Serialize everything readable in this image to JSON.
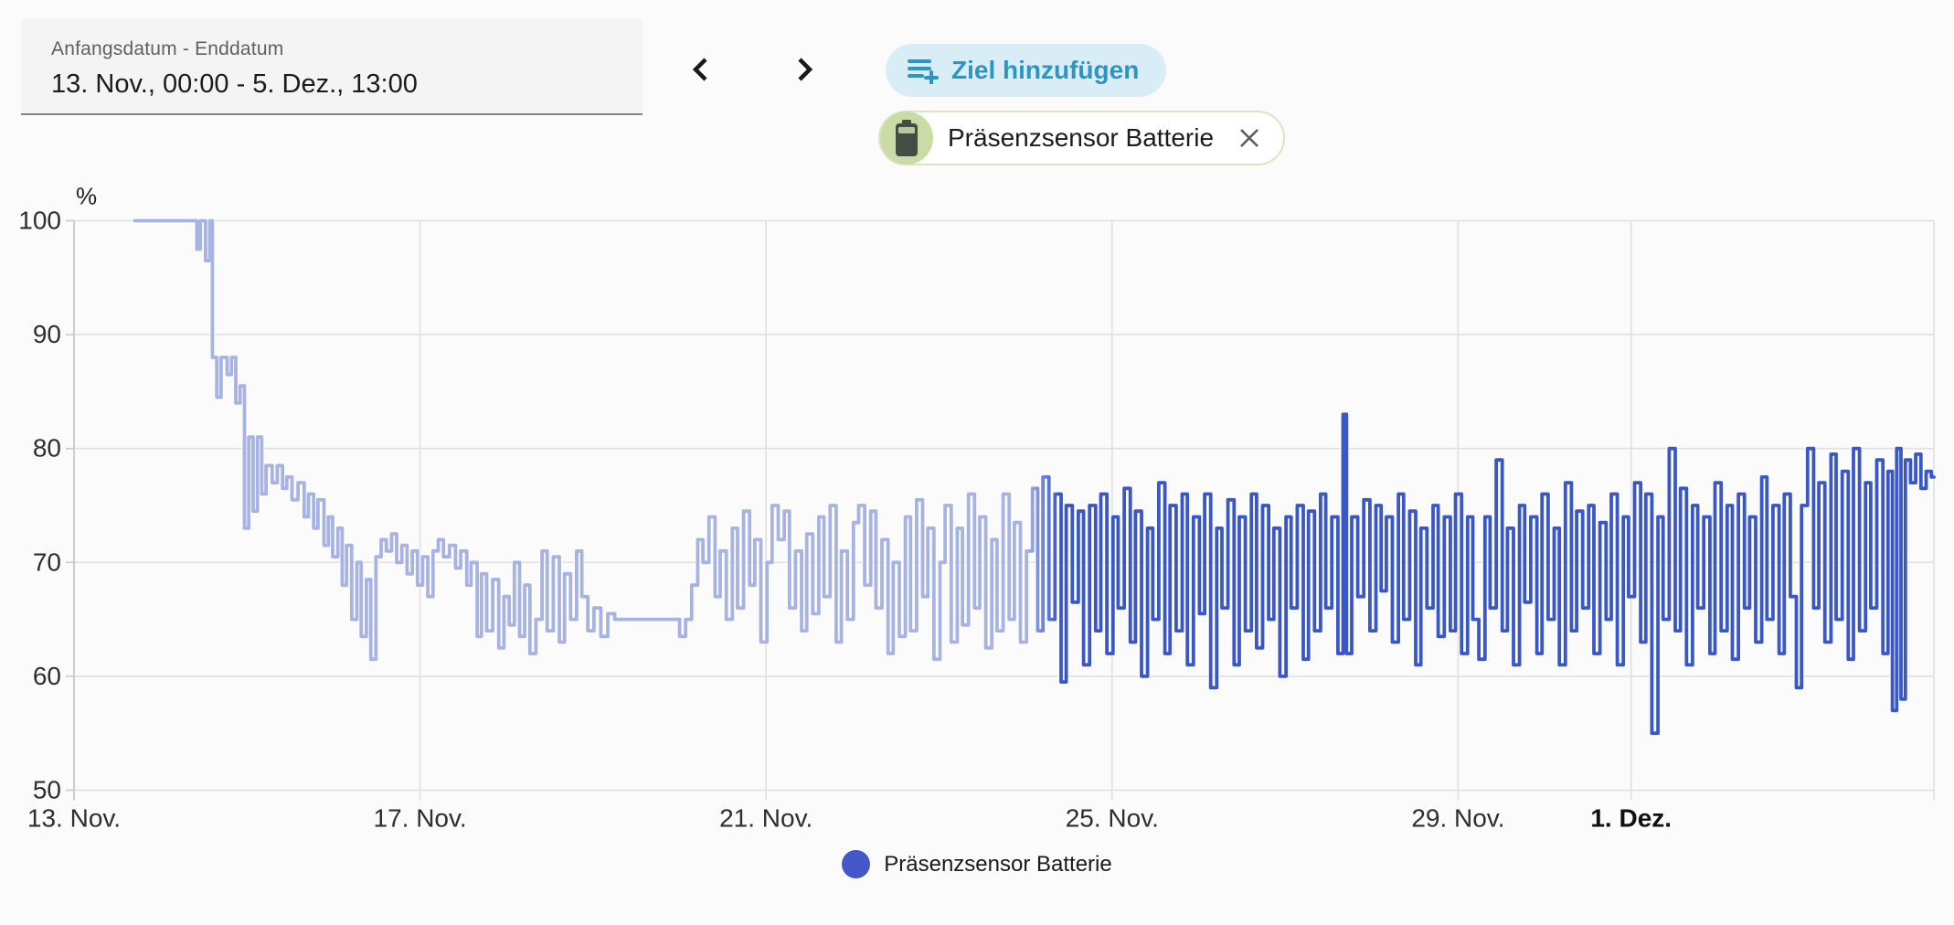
{
  "header": {
    "date_range": {
      "label": "Anfangsdatum - Enddatum",
      "value": "13. Nov., 00:00 - 5. Dez., 13:00"
    },
    "prev_icon": "chevron-left",
    "next_icon": "chevron-right",
    "add_goal_button": {
      "label": "Ziel hinzufügen",
      "icon": "playlist-plus"
    },
    "entity_chip": {
      "label": "Präsenzsensor Batterie",
      "icon": "battery",
      "close_icon": "close",
      "avatar_bg": "#cbdba6"
    }
  },
  "colors": {
    "accent_button_bg": "#d9edf7",
    "accent_button_text": "#2d95c2",
    "line_old": "#a7b3e3",
    "line_recent": "#3a57c8",
    "legend_dot": "#4457c9",
    "grid": "#e0e0e0",
    "axis": "#c9c9c9",
    "tick_text": "#2e2e2e"
  },
  "chart_data": {
    "type": "line",
    "step": true,
    "unit": "%",
    "ylabel": "%",
    "ylim": [
      50,
      100
    ],
    "yticks": [
      100,
      90,
      80,
      70,
      60,
      50
    ],
    "grid": true,
    "x_axis_start": "13. Nov. 00:00",
    "x_axis_days_span": 21.5,
    "xticks": [
      {
        "day": 0,
        "label": "13. Nov."
      },
      {
        "day": 4,
        "label": "17. Nov."
      },
      {
        "day": 8,
        "label": "21. Nov."
      },
      {
        "day": 12,
        "label": "25. Nov."
      },
      {
        "day": 16,
        "label": "29. Nov."
      },
      {
        "day": 18,
        "label": "1. Dez.",
        "bold": true
      }
    ],
    "legend": {
      "position": "bottom",
      "entries": [
        {
          "label": "Präsenzsensor Batterie",
          "color": "#4457c9"
        }
      ]
    },
    "series": [
      {
        "name": "Präsenzsensor Batterie",
        "color_old": "#a7b3e3",
        "color_recent": "#3a57c8",
        "color_transition_day": 11.2,
        "points": [
          [
            0.7,
            100
          ],
          [
            1.42,
            97.5
          ],
          [
            1.46,
            100
          ],
          [
            1.52,
            96.5
          ],
          [
            1.57,
            100
          ],
          [
            1.6,
            88
          ],
          [
            1.65,
            84.5
          ],
          [
            1.7,
            88
          ],
          [
            1.77,
            86.5
          ],
          [
            1.82,
            88
          ],
          [
            1.87,
            84
          ],
          [
            1.92,
            85.5
          ],
          [
            1.97,
            73
          ],
          [
            2.02,
            81
          ],
          [
            2.07,
            74.5
          ],
          [
            2.12,
            81
          ],
          [
            2.17,
            76
          ],
          [
            2.22,
            78.5
          ],
          [
            2.29,
            77
          ],
          [
            2.35,
            78.5
          ],
          [
            2.41,
            76.5
          ],
          [
            2.46,
            77.5
          ],
          [
            2.52,
            75.5
          ],
          [
            2.59,
            77
          ],
          [
            2.66,
            74
          ],
          [
            2.71,
            76
          ],
          [
            2.77,
            73
          ],
          [
            2.82,
            75.5
          ],
          [
            2.89,
            71.5
          ],
          [
            2.94,
            74
          ],
          [
            2.99,
            70.5
          ],
          [
            3.05,
            73
          ],
          [
            3.1,
            68
          ],
          [
            3.15,
            71.5
          ],
          [
            3.21,
            65
          ],
          [
            3.27,
            70
          ],
          [
            3.32,
            63.5
          ],
          [
            3.38,
            68.5
          ],
          [
            3.43,
            61.5
          ],
          [
            3.49,
            70.5
          ],
          [
            3.55,
            72
          ],
          [
            3.61,
            71
          ],
          [
            3.67,
            72.5
          ],
          [
            3.73,
            70
          ],
          [
            3.79,
            71.5
          ],
          [
            3.85,
            69
          ],
          [
            3.91,
            71
          ],
          [
            3.97,
            68
          ],
          [
            4.03,
            70.5
          ],
          [
            4.09,
            67
          ],
          [
            4.15,
            71
          ],
          [
            4.21,
            72
          ],
          [
            4.27,
            70.5
          ],
          [
            4.34,
            71.5
          ],
          [
            4.41,
            69.5
          ],
          [
            4.47,
            71
          ],
          [
            4.54,
            68
          ],
          [
            4.59,
            70
          ],
          [
            4.66,
            63.5
          ],
          [
            4.71,
            69
          ],
          [
            4.77,
            64
          ],
          [
            4.84,
            68.5
          ],
          [
            4.91,
            62.5
          ],
          [
            4.97,
            67
          ],
          [
            5.03,
            64.5
          ],
          [
            5.09,
            70
          ],
          [
            5.15,
            63.5
          ],
          [
            5.21,
            68
          ],
          [
            5.27,
            62
          ],
          [
            5.34,
            65
          ],
          [
            5.41,
            71
          ],
          [
            5.47,
            64
          ],
          [
            5.54,
            70.5
          ],
          [
            5.61,
            63
          ],
          [
            5.67,
            69
          ],
          [
            5.74,
            65
          ],
          [
            5.81,
            71
          ],
          [
            5.87,
            67
          ],
          [
            5.94,
            64
          ],
          [
            6.01,
            66
          ],
          [
            6.09,
            63.5
          ],
          [
            6.17,
            65.5
          ],
          [
            6.25,
            65
          ],
          [
            7.0,
            63.5
          ],
          [
            7.07,
            65
          ],
          [
            7.14,
            68
          ],
          [
            7.21,
            72
          ],
          [
            7.27,
            70
          ],
          [
            7.34,
            74
          ],
          [
            7.41,
            67
          ],
          [
            7.47,
            71
          ],
          [
            7.54,
            65
          ],
          [
            7.61,
            73
          ],
          [
            7.67,
            66
          ],
          [
            7.74,
            74.5
          ],
          [
            7.81,
            68
          ],
          [
            7.87,
            72
          ],
          [
            7.94,
            63
          ],
          [
            8.01,
            70
          ],
          [
            8.07,
            75
          ],
          [
            8.14,
            72
          ],
          [
            8.21,
            74.5
          ],
          [
            8.27,
            66
          ],
          [
            8.34,
            71
          ],
          [
            8.41,
            64
          ],
          [
            8.47,
            72.5
          ],
          [
            8.54,
            65.5
          ],
          [
            8.61,
            74
          ],
          [
            8.67,
            67
          ],
          [
            8.74,
            75
          ],
          [
            8.81,
            63
          ],
          [
            8.87,
            71
          ],
          [
            8.94,
            65
          ],
          [
            9.01,
            73.5
          ],
          [
            9.07,
            75
          ],
          [
            9.14,
            68
          ],
          [
            9.21,
            74.5
          ],
          [
            9.27,
            66
          ],
          [
            9.34,
            72
          ],
          [
            9.41,
            62
          ],
          [
            9.47,
            70
          ],
          [
            9.54,
            63.5
          ],
          [
            9.61,
            74
          ],
          [
            9.67,
            64
          ],
          [
            9.74,
            75.5
          ],
          [
            9.81,
            67
          ],
          [
            9.87,
            73
          ],
          [
            9.94,
            61.5
          ],
          [
            10.01,
            70
          ],
          [
            10.07,
            75
          ],
          [
            10.14,
            63
          ],
          [
            10.21,
            73
          ],
          [
            10.27,
            64.5
          ],
          [
            10.34,
            76
          ],
          [
            10.41,
            66
          ],
          [
            10.47,
            74
          ],
          [
            10.54,
            62.5
          ],
          [
            10.61,
            72
          ],
          [
            10.67,
            64
          ],
          [
            10.74,
            76
          ],
          [
            10.81,
            65
          ],
          [
            10.87,
            73.5
          ],
          [
            10.94,
            63
          ],
          [
            11.01,
            71
          ],
          [
            11.08,
            76.5
          ],
          [
            11.14,
            64
          ],
          [
            11.2,
            77.5
          ],
          [
            11.27,
            65
          ],
          [
            11.34,
            76
          ],
          [
            11.41,
            59.5
          ],
          [
            11.47,
            75
          ],
          [
            11.54,
            66.5
          ],
          [
            11.61,
            74.5
          ],
          [
            11.67,
            61
          ],
          [
            11.74,
            75
          ],
          [
            11.81,
            64
          ],
          [
            11.87,
            76
          ],
          [
            11.94,
            62
          ],
          [
            12.01,
            74
          ],
          [
            12.07,
            66
          ],
          [
            12.14,
            76.5
          ],
          [
            12.21,
            63
          ],
          [
            12.27,
            74.5
          ],
          [
            12.34,
            60
          ],
          [
            12.41,
            73
          ],
          [
            12.47,
            65
          ],
          [
            12.54,
            77
          ],
          [
            12.61,
            62
          ],
          [
            12.67,
            75
          ],
          [
            12.74,
            64
          ],
          [
            12.81,
            76
          ],
          [
            12.87,
            61
          ],
          [
            12.94,
            74
          ],
          [
            13.01,
            65.5
          ],
          [
            13.07,
            76
          ],
          [
            13.14,
            59
          ],
          [
            13.21,
            73
          ],
          [
            13.27,
            66
          ],
          [
            13.34,
            75.5
          ],
          [
            13.41,
            61
          ],
          [
            13.47,
            74
          ],
          [
            13.54,
            64
          ],
          [
            13.61,
            76
          ],
          [
            13.67,
            62.5
          ],
          [
            13.74,
            75
          ],
          [
            13.81,
            65
          ],
          [
            13.87,
            73
          ],
          [
            13.94,
            60
          ],
          [
            14.01,
            74
          ],
          [
            14.07,
            66
          ],
          [
            14.14,
            75
          ],
          [
            14.21,
            61.5
          ],
          [
            14.27,
            74.5
          ],
          [
            14.34,
            64
          ],
          [
            14.41,
            76
          ],
          [
            14.47,
            66
          ],
          [
            14.54,
            74
          ],
          [
            14.61,
            62
          ],
          [
            14.67,
            83
          ],
          [
            14.71,
            62
          ],
          [
            14.77,
            74
          ],
          [
            14.84,
            67
          ],
          [
            14.91,
            75.5
          ],
          [
            14.98,
            64
          ],
          [
            15.05,
            75
          ],
          [
            15.11,
            67.5
          ],
          [
            15.17,
            74
          ],
          [
            15.24,
            63
          ],
          [
            15.31,
            76
          ],
          [
            15.37,
            65
          ],
          [
            15.44,
            74.5
          ],
          [
            15.51,
            61
          ],
          [
            15.57,
            73
          ],
          [
            15.64,
            66
          ],
          [
            15.71,
            75
          ],
          [
            15.77,
            63.5
          ],
          [
            15.84,
            74
          ],
          [
            15.91,
            64
          ],
          [
            15.97,
            76
          ],
          [
            16.04,
            62
          ],
          [
            16.11,
            74
          ],
          [
            16.17,
            65
          ],
          [
            16.24,
            61.5
          ],
          [
            16.31,
            74
          ],
          [
            16.37,
            66
          ],
          [
            16.44,
            79
          ],
          [
            16.51,
            64
          ],
          [
            16.57,
            73
          ],
          [
            16.64,
            61
          ],
          [
            16.71,
            75
          ],
          [
            16.77,
            66.5
          ],
          [
            16.84,
            74
          ],
          [
            16.91,
            62
          ],
          [
            16.97,
            76
          ],
          [
            17.04,
            65
          ],
          [
            17.11,
            73
          ],
          [
            17.17,
            61
          ],
          [
            17.24,
            77
          ],
          [
            17.31,
            64
          ],
          [
            17.37,
            74.5
          ],
          [
            17.44,
            66
          ],
          [
            17.51,
            75
          ],
          [
            17.57,
            62
          ],
          [
            17.64,
            73.5
          ],
          [
            17.71,
            65
          ],
          [
            17.77,
            76
          ],
          [
            17.84,
            61
          ],
          [
            17.91,
            74
          ],
          [
            17.97,
            67
          ],
          [
            18.04,
            77
          ],
          [
            18.11,
            63
          ],
          [
            18.17,
            76
          ],
          [
            18.24,
            55
          ],
          [
            18.31,
            74
          ],
          [
            18.37,
            65
          ],
          [
            18.44,
            80
          ],
          [
            18.51,
            64
          ],
          [
            18.57,
            76.5
          ],
          [
            18.64,
            61
          ],
          [
            18.71,
            75
          ],
          [
            18.77,
            66
          ],
          [
            18.84,
            74
          ],
          [
            18.91,
            62
          ],
          [
            18.97,
            77
          ],
          [
            19.04,
            64
          ],
          [
            19.11,
            75
          ],
          [
            19.17,
            61.5
          ],
          [
            19.24,
            76
          ],
          [
            19.31,
            66
          ],
          [
            19.37,
            74
          ],
          [
            19.44,
            63
          ],
          [
            19.51,
            77.5
          ],
          [
            19.57,
            65
          ],
          [
            19.64,
            75
          ],
          [
            19.71,
            62
          ],
          [
            19.77,
            76
          ],
          [
            19.84,
            67
          ],
          [
            19.91,
            59
          ],
          [
            19.97,
            75
          ],
          [
            20.04,
            80
          ],
          [
            20.11,
            66
          ],
          [
            20.17,
            77
          ],
          [
            20.24,
            63
          ],
          [
            20.31,
            79.5
          ],
          [
            20.37,
            65
          ],
          [
            20.44,
            78
          ],
          [
            20.51,
            61.5
          ],
          [
            20.57,
            80
          ],
          [
            20.64,
            64
          ],
          [
            20.71,
            77
          ],
          [
            20.77,
            66
          ],
          [
            20.84,
            79
          ],
          [
            20.91,
            62
          ],
          [
            20.97,
            78
          ],
          [
            21.02,
            57
          ],
          [
            21.07,
            80
          ],
          [
            21.12,
            58
          ],
          [
            21.17,
            79
          ],
          [
            21.23,
            77
          ],
          [
            21.29,
            79.5
          ],
          [
            21.35,
            76.5
          ],
          [
            21.41,
            78
          ],
          [
            21.47,
            77.5
          ]
        ]
      }
    ]
  }
}
